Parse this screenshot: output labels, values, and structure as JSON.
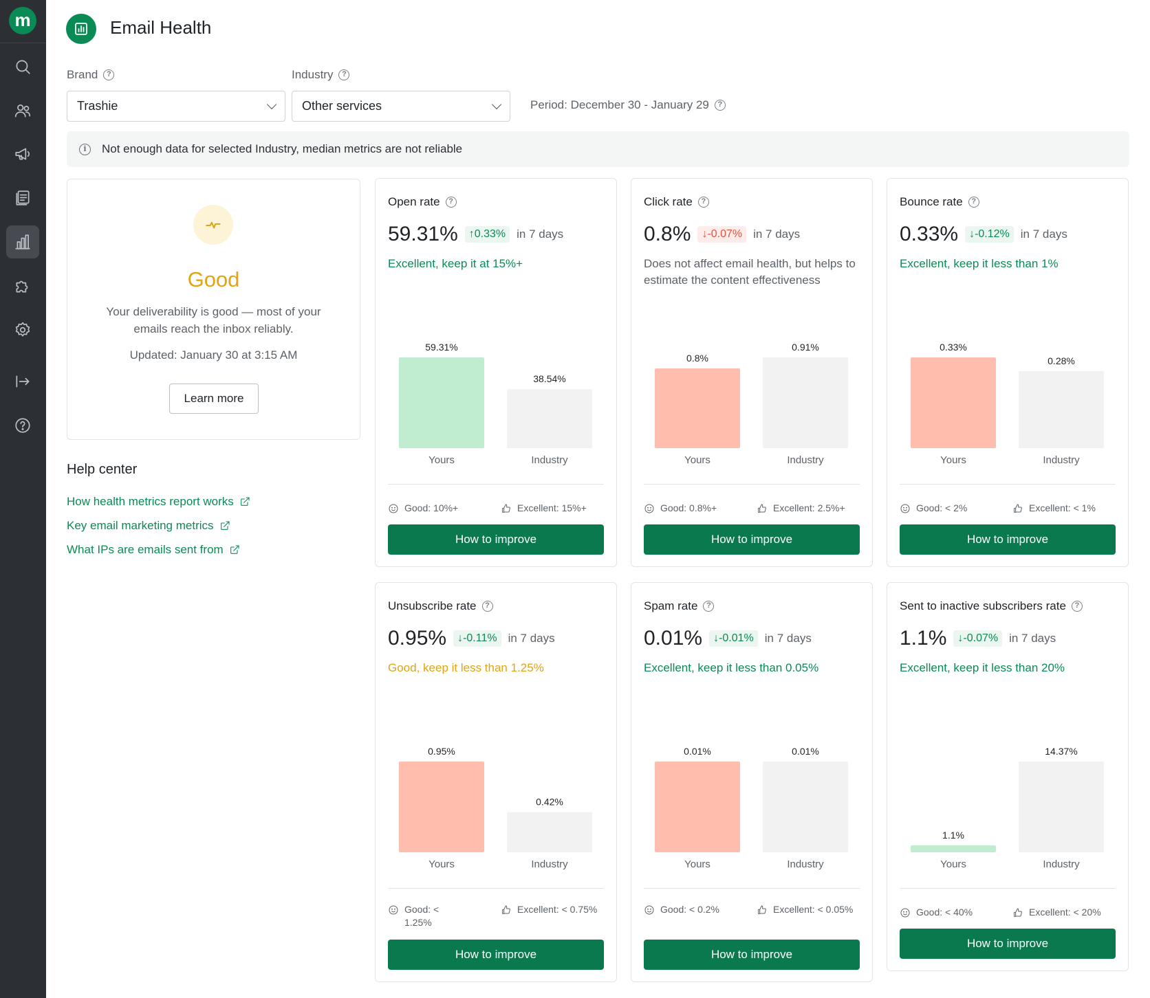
{
  "app": {
    "logo": "m"
  },
  "sidebar": {
    "items": [
      {
        "icon": "search-icon"
      },
      {
        "icon": "users-icon"
      },
      {
        "icon": "megaphone-icon"
      },
      {
        "icon": "templates-icon"
      },
      {
        "icon": "chart-bar-icon",
        "active": true
      },
      {
        "icon": "puzzle-icon"
      },
      {
        "icon": "gear-icon"
      },
      {
        "icon": "logout-icon"
      },
      {
        "icon": "help-icon"
      }
    ]
  },
  "header": {
    "title": "Email Health"
  },
  "filters": {
    "brand_label": "Brand",
    "brand_value": "Trashie",
    "industry_label": "Industry",
    "industry_value": "Other services",
    "period": "Period: December 30 - January 29"
  },
  "notice": "Not enough data for selected Industry, median metrics are not reliable",
  "health": {
    "status": "Good",
    "description": "Your deliverability is good — most of your emails reach the inbox reliably.",
    "updated": "Updated: January 30 at 3:15 AM",
    "learn_more": "Learn more"
  },
  "help_center": {
    "title": "Help center",
    "links": [
      "How health metrics report works",
      "Key email marketing metrics",
      "What IPs are emails sent from"
    ]
  },
  "colors": {
    "accent": "#0a8a55",
    "yours_good": "#c0ecd0",
    "yours_bad": "#ffbdad",
    "industry": "#f2f2f2",
    "amber": "#e0a415"
  },
  "metrics": [
    {
      "title": "Open rate",
      "value": "59.31%",
      "delta": "0.33%",
      "delta_dir": "up",
      "delta_tone": "good",
      "period": "in 7 days",
      "message": "Excellent, keep it at 15%+",
      "message_tone": "green",
      "good": "Good: 10%+",
      "excellent": "Excellent: 15%+",
      "button": "How to improve",
      "chart_data": {
        "type": "bar",
        "categories": [
          "Yours",
          "Industry"
        ],
        "values": [
          59.31,
          38.54
        ],
        "labels": [
          "59.31%",
          "38.54%"
        ],
        "yours_color": "#c0ecd0"
      }
    },
    {
      "title": "Click rate",
      "value": "0.8%",
      "delta": "-0.07%",
      "delta_dir": "down",
      "delta_tone": "bad",
      "period": "in 7 days",
      "message": "Does not affect email health, but helps to estimate the content effectiveness",
      "message_tone": "gray",
      "good": "Good: 0.8%+",
      "excellent": "Excellent: 2.5%+",
      "button": "How to improve",
      "chart_data": {
        "type": "bar",
        "categories": [
          "Yours",
          "Industry"
        ],
        "values": [
          0.8,
          0.91
        ],
        "labels": [
          "0.8%",
          "0.91%"
        ],
        "yours_color": "#ffbdad"
      }
    },
    {
      "title": "Bounce rate",
      "value": "0.33%",
      "delta": "-0.12%",
      "delta_dir": "down",
      "delta_tone": "good",
      "period": "in 7 days",
      "message": "Excellent, keep it less than 1%",
      "message_tone": "green",
      "good": "Good: < 2%",
      "excellent": "Excellent: < 1%",
      "button": "How to improve",
      "chart_data": {
        "type": "bar",
        "categories": [
          "Yours",
          "Industry"
        ],
        "values": [
          0.33,
          0.28
        ],
        "labels": [
          "0.33%",
          "0.28%"
        ],
        "yours_color": "#ffbdad"
      }
    },
    {
      "title": "Unsubscribe rate",
      "value": "0.95%",
      "delta": "-0.11%",
      "delta_dir": "down",
      "delta_tone": "good",
      "period": "in 7 days",
      "message": "Good, keep it less than 1.25%",
      "message_tone": "amber",
      "good": "Good: < 1.25%",
      "excellent": "Excellent: < 0.75%",
      "button": "How to improve",
      "chart_data": {
        "type": "bar",
        "categories": [
          "Yours",
          "Industry"
        ],
        "values": [
          0.95,
          0.42
        ],
        "labels": [
          "0.95%",
          "0.42%"
        ],
        "yours_color": "#ffbdad"
      }
    },
    {
      "title": "Spam rate",
      "value": "0.01%",
      "delta": "-0.01%",
      "delta_dir": "down",
      "delta_tone": "good",
      "period": "in 7 days",
      "message": "Excellent, keep it less than 0.05%",
      "message_tone": "green",
      "good": "Good: < 0.2%",
      "excellent": "Excellent: < 0.05%",
      "button": "How to improve",
      "chart_data": {
        "type": "bar",
        "categories": [
          "Yours",
          "Industry"
        ],
        "values": [
          0.01,
          0.01
        ],
        "labels": [
          "0.01%",
          "0.01%"
        ],
        "yours_color": "#ffbdad"
      }
    },
    {
      "title": "Sent to inactive subscribers rate",
      "value": "1.1%",
      "delta": "-0.07%",
      "delta_dir": "down",
      "delta_tone": "good",
      "period": "in 7 days",
      "message": "Excellent, keep it less than 20%",
      "message_tone": "green",
      "good": "Good: < 40%",
      "excellent": "Excellent: < 20%",
      "button": "How to improve",
      "chart_data": {
        "type": "bar",
        "categories": [
          "Yours",
          "Industry"
        ],
        "values": [
          1.1,
          14.37
        ],
        "labels": [
          "1.1%",
          "14.37%"
        ],
        "yours_color": "#c0ecd0"
      }
    }
  ]
}
